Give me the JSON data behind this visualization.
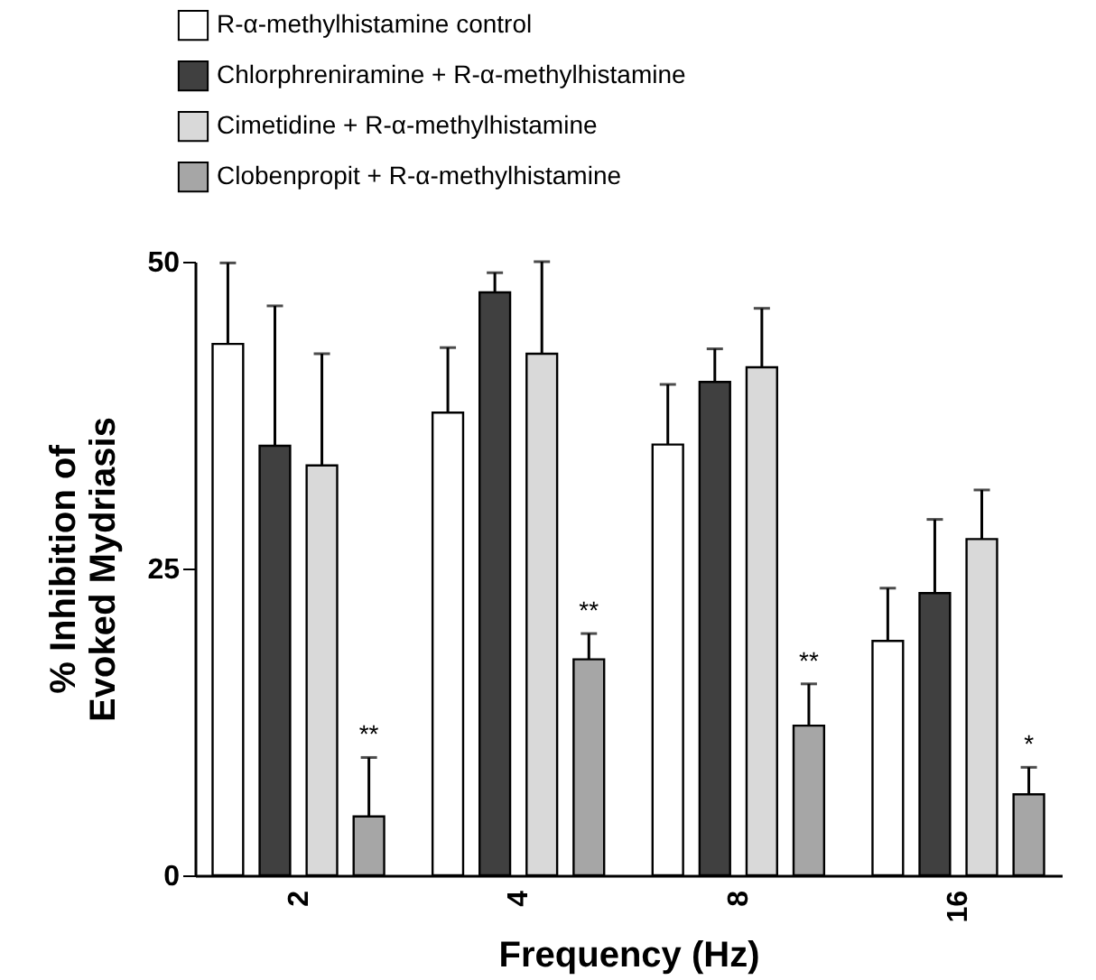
{
  "chart_data": {
    "type": "bar",
    "xlabel": "Frequency (Hz)",
    "ylabel": "% Inhibition of Evoked Mydriasis",
    "categories": [
      "2",
      "4",
      "8",
      "16"
    ],
    "series": [
      {
        "name": "R-α-methylhistamine control",
        "color": "#ffffff",
        "values": [
          43.3,
          37.7,
          35.1,
          19.1
        ],
        "errors": [
          6.6,
          5.3,
          4.9,
          4.3
        ]
      },
      {
        "name": "Chlorphreniramine + R-α-methylhistamine",
        "color": "#404040",
        "values": [
          35.0,
          47.5,
          40.2,
          23.0
        ],
        "errors": [
          11.4,
          1.6,
          2.7,
          6.0
        ]
      },
      {
        "name": "Cimetidine + R-α-methylhistamine",
        "color": "#d9d9d9",
        "values": [
          33.4,
          42.5,
          41.4,
          27.4
        ],
        "errors": [
          9.1,
          7.5,
          4.8,
          4.0
        ]
      },
      {
        "name": "Clobenpropit + R-α-methylhistamine",
        "color": "#a6a6a6",
        "values": [
          4.8,
          17.6,
          12.2,
          6.6
        ],
        "errors": [
          4.8,
          2.1,
          3.4,
          2.2
        ]
      }
    ],
    "annotations": [
      {
        "text": "**",
        "x": "2",
        "y": 9.6
      },
      {
        "text": "**",
        "x": "4",
        "y": 19.7
      },
      {
        "text": "**",
        "x": "8",
        "y": 15.6
      },
      {
        "text": "*",
        "x": "16",
        "y": 8.8
      }
    ],
    "ylim": [
      0,
      50
    ],
    "yticks": [
      0,
      25,
      50
    ],
    "grid": false,
    "legend": "top left"
  }
}
